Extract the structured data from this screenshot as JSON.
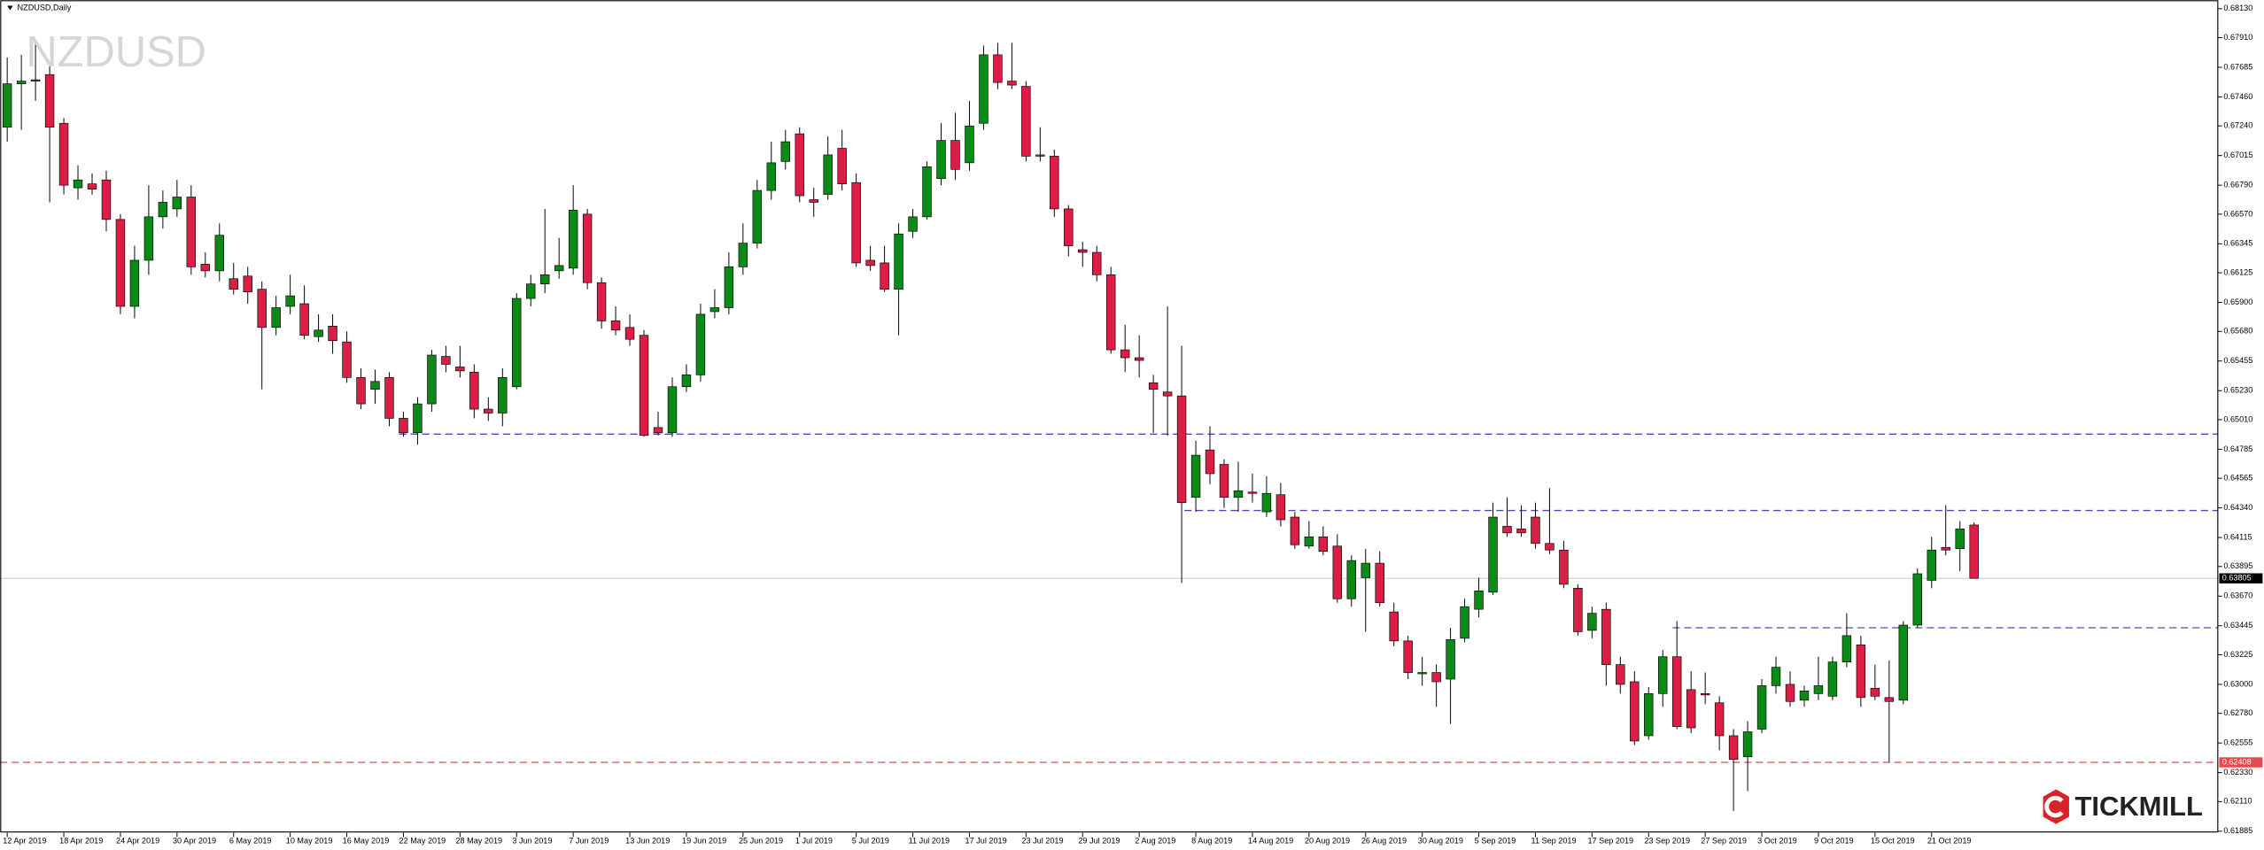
{
  "chart_data": {
    "type": "candlestick",
    "title": "NZDUSD,Daily",
    "watermark": "NZDUSD",
    "logo": "TICKMILL",
    "up_color": "#0b8a16",
    "down_color": "#dc1e46",
    "ylim": [
      0.61874,
      0.68196
    ],
    "yticks": [
      {
        "value": 0.6813,
        "label": "0.68130"
      },
      {
        "value": 0.6791,
        "label": "0.67910"
      },
      0.67685,
      {
        "value": 0.6746,
        "label": "0.67460"
      },
      {
        "value": 0.6724,
        "label": "0.67240"
      },
      0.67015,
      {
        "value": 0.6679,
        "label": "0.66790"
      },
      {
        "value": 0.6657,
        "label": "0.66570"
      },
      0.66345,
      0.66125,
      {
        "value": 0.659,
        "label": "0.65900"
      },
      {
        "value": 0.6568,
        "label": "0.65680"
      },
      0.65455,
      {
        "value": 0.6523,
        "label": "0.65230"
      },
      {
        "value": 0.6501,
        "label": "0.65010"
      },
      0.64785,
      0.64565,
      {
        "value": 0.6434,
        "label": "0.64340"
      },
      0.64115,
      0.63895,
      {
        "value": 0.6367,
        "label": "0.63670"
      },
      0.63445,
      0.63225,
      {
        "value": 0.63,
        "label": "0.63000"
      },
      {
        "value": 0.6278,
        "label": "0.62780"
      },
      0.62555,
      {
        "value": 0.6233,
        "label": "0.62330"
      },
      {
        "value": 0.6211,
        "label": "0.62110"
      },
      0.61885
    ],
    "current_price": 0.63805,
    "levels": [
      {
        "value": 0.649,
        "color": "#4a4ab8"
      },
      {
        "value": 0.6432,
        "color": "#4a4ab8"
      },
      {
        "value": 0.6343,
        "color": "#4a4ab8"
      },
      {
        "value": 0.62408,
        "color": "#e8474f"
      }
    ],
    "categories": [
      "12 Apr 2019",
      null,
      null,
      null,
      "18 Apr 2019",
      null,
      null,
      null,
      "24 Apr 2019",
      null,
      null,
      null,
      "30 Apr 2019",
      null,
      null,
      null,
      "6 May 2019",
      null,
      null,
      null,
      "10 May 2019",
      null,
      null,
      null,
      "16 May 2019",
      null,
      null,
      null,
      "22 May 2019",
      null,
      null,
      null,
      "28 May 2019",
      null,
      null,
      null,
      "3 Jun 2019",
      null,
      null,
      null,
      "7 Jun 2019",
      null,
      null,
      null,
      "13 Jun 2019",
      null,
      null,
      null,
      "19 Jun 2019",
      null,
      null,
      null,
      "25 Jun 2019",
      null,
      null,
      null,
      "1 Jul 2019",
      null,
      null,
      null,
      "5 Jul 2019",
      null,
      null,
      null,
      "11 Jul 2019",
      null,
      null,
      null,
      "17 Jul 2019",
      null,
      null,
      null,
      "23 Jul 2019",
      null,
      null,
      null,
      "29 Jul 2019",
      null,
      null,
      null,
      "2 Aug 2019",
      null,
      null,
      null,
      "8 Aug 2019",
      null,
      null,
      null,
      "14 Aug 2019",
      null,
      null,
      null,
      "20 Aug 2019",
      null,
      null,
      null,
      "26 Aug 2019",
      null,
      null,
      null,
      "30 Aug 2019",
      null,
      null,
      null,
      "5 Sep 2019",
      null,
      null,
      null,
      "11 Sep 2019",
      null,
      null,
      null,
      "17 Sep 2019",
      null,
      null,
      null,
      "23 Sep 2019",
      null,
      null,
      null,
      "27 Sep 2019",
      null,
      null,
      null,
      "3 Oct 2019",
      null,
      null,
      null,
      "9 Oct 2019",
      null,
      null,
      null,
      "15 Oct 2019",
      null,
      null,
      null,
      "21 Oct 2019",
      null,
      null,
      null
    ],
    "open": [
      0.6723,
      0.6756,
      0.6758,
      0.6763,
      0.6726,
      0.6677,
      0.668,
      0.6683,
      0.6653,
      0.6587,
      0.6622,
      0.6655,
      0.6661,
      0.667,
      0.6619,
      0.6614,
      0.6608,
      0.661,
      0.66,
      0.6571,
      0.6587,
      0.6589,
      0.6564,
      0.6572,
      0.656,
      0.6533,
      0.6524,
      0.6533,
      0.6502,
      0.6491,
      0.6513,
      0.6549,
      0.6541,
      0.6537,
      0.6509,
      0.6506,
      0.6526,
      0.6593,
      0.6604,
      0.6614,
      0.6616,
      0.6657,
      0.6605,
      0.6576,
      0.6571,
      0.6565,
      0.6495,
      0.6491,
      0.6526,
      0.6535,
      0.6583,
      0.6586,
      0.6617,
      0.6635,
      0.6675,
      0.6697,
      0.6718,
      0.6668,
      0.6672,
      0.6707,
      0.6681,
      0.6622,
      0.662,
      0.66,
      0.6644,
      0.6655,
      0.6684,
      0.6713,
      0.6696,
      0.6726,
      0.6778,
      0.6758,
      0.6754,
      0.6702,
      0.6701,
      0.6661,
      0.663,
      0.6628,
      0.6611,
      0.6554,
      0.6548,
      0.6529,
      0.6522,
      0.6519,
      0.6442,
      0.6478,
      0.6467,
      0.6442,
      0.6446,
      0.6431,
      0.6444,
      0.6427,
      0.6405,
      0.6412,
      0.6405,
      0.6365,
      0.6381,
      0.6392,
      0.6355,
      0.6333,
      0.6308,
      0.6309,
      0.6304,
      0.6335,
      0.6357,
      0.637,
      0.642,
      0.6418,
      0.6427,
      0.6407,
      0.6402,
      0.6373,
      0.6341,
      0.6357,
      0.6315,
      0.6302,
      0.6261,
      0.6293,
      0.6321,
      0.6296,
      0.6293,
      0.6286,
      0.6261,
      0.6245,
      0.6266,
      0.6299,
      0.63,
      0.6288,
      0.6293,
      0.6291,
      0.6317,
      0.633,
      0.6297,
      0.629,
      0.6288,
      0.6345,
      0.6379,
      0.6404,
      0.6403,
      0.6421
    ],
    "high": [
      0.6776,
      0.6778,
      0.6787,
      0.677,
      0.673,
      0.6694,
      0.6688,
      0.669,
      0.6657,
      0.6633,
      0.6679,
      0.6675,
      0.6683,
      0.6679,
      0.6628,
      0.665,
      0.662,
      0.6617,
      0.6606,
      0.6595,
      0.6611,
      0.6603,
      0.6581,
      0.6581,
      0.6568,
      0.654,
      0.6539,
      0.6537,
      0.6507,
      0.6518,
      0.6554,
      0.6557,
      0.6557,
      0.6543,
      0.6518,
      0.654,
      0.6597,
      0.6611,
      0.6661,
      0.6639,
      0.6679,
      0.6661,
      0.6609,
      0.6587,
      0.6581,
      0.6569,
      0.6507,
      0.6533,
      0.6543,
      0.6589,
      0.66,
      0.6628,
      0.665,
      0.6683,
      0.6712,
      0.6721,
      0.6723,
      0.6677,
      0.6716,
      0.6721,
      0.6688,
      0.6633,
      0.6633,
      0.665,
      0.6661,
      0.6697,
      0.6726,
      0.6734,
      0.6743,
      0.6785,
      0.6787,
      0.6787,
      0.6758,
      0.6723,
      0.6706,
      0.6664,
      0.6636,
      0.6633,
      0.6617,
      0.6573,
      0.6565,
      0.6535,
      0.6587,
      0.6557,
      0.6485,
      0.6496,
      0.6471,
      0.6469,
      0.646,
      0.6458,
      0.6453,
      0.6431,
      0.6424,
      0.642,
      0.6414,
      0.6398,
      0.6403,
      0.6401,
      0.6362,
      0.6337,
      0.6321,
      0.6315,
      0.6343,
      0.6365,
      0.6381,
      0.6438,
      0.6442,
      0.6436,
      0.6438,
      0.6449,
      0.6409,
      0.6376,
      0.6359,
      0.6362,
      0.6321,
      0.631,
      0.6298,
      0.6326,
      0.6348,
      0.631,
      0.6309,
      0.6291,
      0.6266,
      0.6272,
      0.6304,
      0.6321,
      0.631,
      0.6299,
      0.6321,
      0.6321,
      0.6354,
      0.6337,
      0.6315,
      0.6318,
      0.6348,
      0.6388,
      0.6412,
      0.6436,
      0.6424,
      0.6423
    ],
    "low": [
      0.6712,
      0.6721,
      0.6743,
      0.6666,
      0.6672,
      0.6668,
      0.6672,
      0.6644,
      0.6581,
      0.6578,
      0.6611,
      0.6646,
      0.6655,
      0.6611,
      0.6609,
      0.6606,
      0.6596,
      0.6589,
      0.6524,
      0.6565,
      0.6581,
      0.6562,
      0.656,
      0.6551,
      0.6529,
      0.6509,
      0.6513,
      0.6496,
      0.6488,
      0.6482,
      0.6507,
      0.6537,
      0.6533,
      0.6502,
      0.65,
      0.6496,
      0.6524,
      0.6587,
      0.6597,
      0.6608,
      0.6611,
      0.66,
      0.657,
      0.6565,
      0.6557,
      0.6488,
      0.6489,
      0.6488,
      0.6522,
      0.653,
      0.6578,
      0.6581,
      0.6611,
      0.6631,
      0.6668,
      0.6691,
      0.6666,
      0.6655,
      0.6668,
      0.6675,
      0.6617,
      0.6614,
      0.6598,
      0.6565,
      0.6639,
      0.6653,
      0.6679,
      0.6683,
      0.669,
      0.6721,
      0.6752,
      0.6752,
      0.6697,
      0.6697,
      0.6655,
      0.6625,
      0.6617,
      0.6606,
      0.6551,
      0.6537,
      0.6533,
      0.6491,
      0.6489,
      0.6377,
      0.6431,
      0.6452,
      0.6434,
      0.6431,
      0.6438,
      0.6427,
      0.642,
      0.6403,
      0.6403,
      0.6398,
      0.6362,
      0.6359,
      0.634,
      0.6359,
      0.6329,
      0.6304,
      0.6299,
      0.6283,
      0.627,
      0.6332,
      0.6351,
      0.6368,
      0.6412,
      0.6412,
      0.6403,
      0.6399,
      0.6373,
      0.6337,
      0.6335,
      0.6299,
      0.6293,
      0.6254,
      0.6258,
      0.6283,
      0.6266,
      0.6263,
      0.6285,
      0.625,
      0.6204,
      0.6219,
      0.6263,
      0.6293,
      0.6283,
      0.6283,
      0.6288,
      0.6288,
      0.6313,
      0.6283,
      0.6288,
      0.6241,
      0.6285,
      0.6343,
      0.6373,
      0.6398,
      0.6386,
      0.6381
    ],
    "close": [
      0.6756,
      0.6758,
      0.6759,
      0.6723,
      0.6679,
      0.6683,
      0.6676,
      0.6653,
      0.6587,
      0.6622,
      0.6655,
      0.6666,
      0.667,
      0.6617,
      0.6614,
      0.6641,
      0.66,
      0.6598,
      0.6571,
      0.6586,
      0.6595,
      0.6565,
      0.6569,
      0.6561,
      0.6533,
      0.6513,
      0.653,
      0.6502,
      0.6491,
      0.6513,
      0.655,
      0.6543,
      0.6538,
      0.6509,
      0.6506,
      0.6533,
      0.6593,
      0.6604,
      0.6611,
      0.6618,
      0.666,
      0.6605,
      0.6576,
      0.6569,
      0.6562,
      0.6489,
      0.6491,
      0.6526,
      0.6535,
      0.6581,
      0.6586,
      0.6617,
      0.6635,
      0.6675,
      0.6696,
      0.6712,
      0.6671,
      0.6666,
      0.6702,
      0.668,
      0.662,
      0.6618,
      0.66,
      0.6642,
      0.6655,
      0.6693,
      0.6713,
      0.6691,
      0.6724,
      0.6778,
      0.6757,
      0.6755,
      0.6701,
      0.6701,
      0.6661,
      0.6633,
      0.6628,
      0.6611,
      0.6554,
      0.6548,
      0.6546,
      0.6524,
      0.6519,
      0.6438,
      0.6474,
      0.646,
      0.6442,
      0.6447,
      0.6445,
      0.6445,
      0.6425,
      0.6406,
      0.6412,
      0.6401,
      0.6365,
      0.6394,
      0.6392,
      0.6362,
      0.6333,
      0.6309,
      0.6309,
      0.6302,
      0.6334,
      0.6359,
      0.6371,
      0.6427,
      0.6415,
      0.6415,
      0.6407,
      0.6402,
      0.6376,
      0.634,
      0.6354,
      0.6315,
      0.63,
      0.6257,
      0.6293,
      0.6321,
      0.6268,
      0.6267,
      0.6292,
      0.6261,
      0.6243,
      0.6264,
      0.6299,
      0.6313,
      0.6287,
      0.6295,
      0.6299,
      0.6317,
      0.6337,
      0.629,
      0.6291,
      0.6287,
      0.6345,
      0.6384,
      0.6402,
      0.6402,
      0.6418,
      0.63805
    ]
  }
}
